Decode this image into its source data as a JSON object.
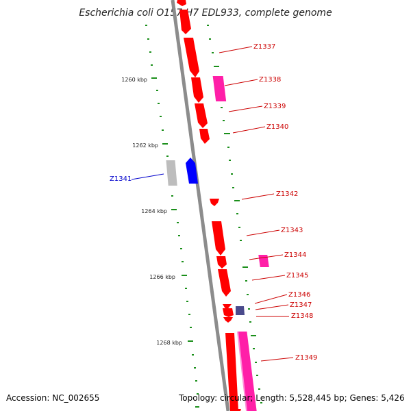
{
  "title": "Escherichia coli O157:H7 EDL933, complete genome",
  "accession_text": "Accession: NC_002655",
  "topology_text": "Topology: circular; Length: 5,528,445 bp; Genes: 5,426",
  "colors": {
    "backbone": "#8c8c8c",
    "tick": "#1a8f1a",
    "red": "#ff0000",
    "pink": "#ff1fa8",
    "blue": "#0000ff",
    "gray": "#bdbdbd",
    "slate": "#4a4a8c",
    "label_red": "#cc0000",
    "label_blue": "#0000cc"
  },
  "kbp_labels": [
    "1260 kbp",
    "1262 kbp",
    "1264 kbp",
    "1266 kbp",
    "1268 kbp"
  ],
  "gene_labels": [
    "Z1337",
    "Z1338",
    "Z1339",
    "Z1340",
    "Z1341",
    "Z1342",
    "Z1343",
    "Z1344",
    "Z1345",
    "Z1346",
    "Z1347",
    "Z1348",
    "Z1349"
  ]
}
